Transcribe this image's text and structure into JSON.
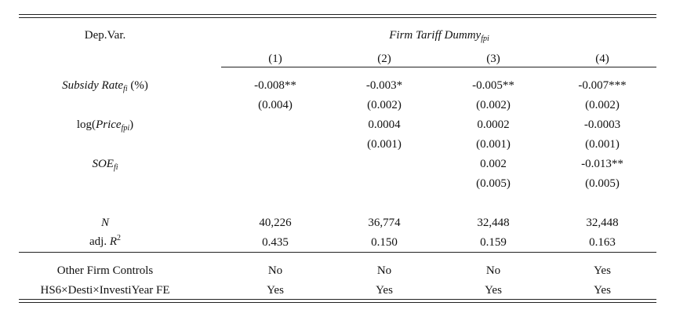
{
  "header": {
    "depvar_label": "Dep.Var.",
    "depvar_title_main": "Firm Tariff Dummy",
    "depvar_title_sub": "fpi",
    "columns": [
      "(1)",
      "(2)",
      "(3)",
      "(4)"
    ]
  },
  "rows": {
    "subsidy": {
      "label_main": "Subsidy Rate",
      "label_sub": "fi",
      "label_suffix": "(%)",
      "coef": [
        "-0.008**",
        "-0.003*",
        "-0.005**",
        "-0.007***"
      ],
      "se": [
        "(0.004)",
        "(0.002)",
        "(0.002)",
        "(0.002)"
      ]
    },
    "price": {
      "label_prefix": "log(",
      "label_main": "Price",
      "label_sub": "fpi",
      "label_suffix": ")",
      "coef": [
        "",
        "0.0004",
        "0.0002",
        "-0.0003"
      ],
      "se": [
        "",
        "(0.001)",
        "(0.001)",
        "(0.001)"
      ]
    },
    "soe": {
      "label_main": "SOE",
      "label_sub": "fi",
      "coef": [
        "",
        "",
        "0.002",
        "-0.013**"
      ],
      "se": [
        "",
        "",
        "(0.005)",
        "(0.005)"
      ]
    },
    "n": {
      "label": "N",
      "values": [
        "40,226",
        "36,774",
        "32,448",
        "32,448"
      ]
    },
    "r2": {
      "label_main": "adj. ",
      "label_var": "R",
      "label_sup": "2",
      "values": [
        "0.435",
        "0.150",
        "0.159",
        "0.163"
      ]
    }
  },
  "controls": {
    "firm": {
      "label": "Other Firm Controls",
      "values": [
        "No",
        "No",
        "No",
        "Yes"
      ]
    },
    "fe": {
      "label": "HS6×Desti×InvestiYear FE",
      "values": [
        "Yes",
        "Yes",
        "Yes",
        "Yes"
      ]
    }
  }
}
